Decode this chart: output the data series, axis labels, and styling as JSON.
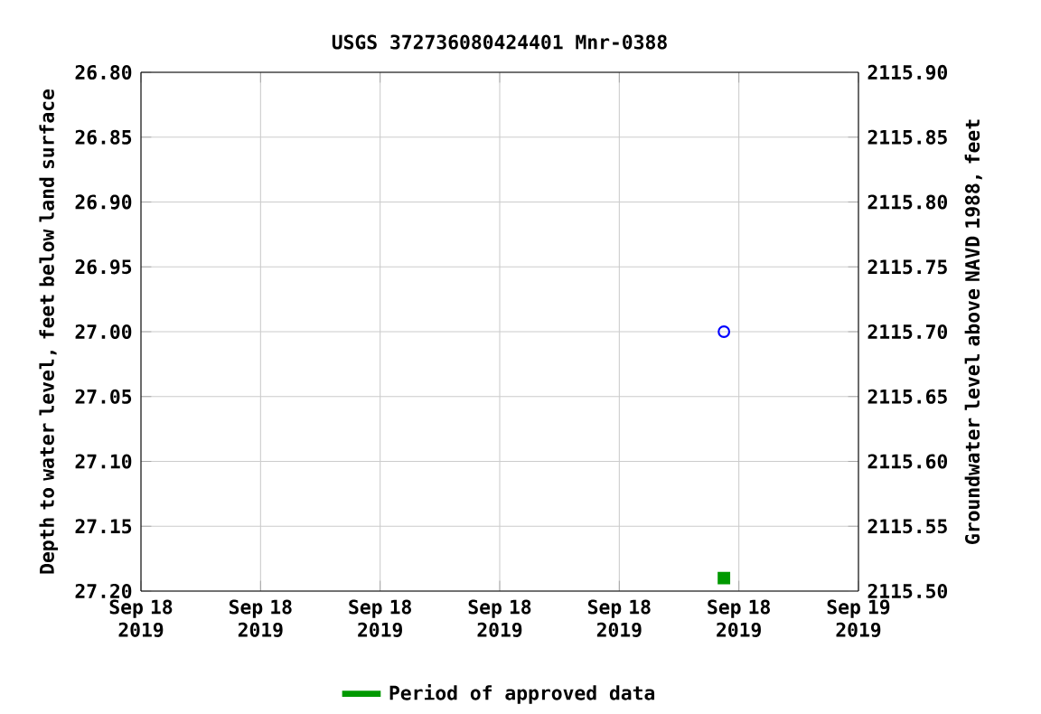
{
  "chart_data": {
    "type": "scatter",
    "title": "USGS 372736080424401 Mnr-0388",
    "ylabel": "Depth to water level, feet below land surface",
    "y2label": "Groundwater level above NAVD 1988, feet",
    "series": [
      {
        "color": "#0000ff",
        "marker": "circle",
        "x": [
          "2019-09-18T19:30"
        ],
        "values": [
          27.0
        ]
      },
      {
        "name": "Period of approved data",
        "color": "#009900",
        "marker": "square",
        "x": [
          "2019-09-18T19:30"
        ],
        "values": [
          27.19
        ]
      }
    ],
    "xlim": [
      "2019-09-18T00:00",
      "2019-09-19T00:00"
    ],
    "xticks": [
      {
        "value": "2019-09-18T00:00",
        "label": "Sep 18 2019"
      },
      {
        "value": "2019-09-18T04:00",
        "label": "Sep 18 2019"
      },
      {
        "value": "2019-09-18T08:00",
        "label": "Sep 18 2019"
      },
      {
        "value": "2019-09-18T12:00",
        "label": "Sep 18 2019"
      },
      {
        "value": "2019-09-18T16:00",
        "label": "Sep 18 2019"
      },
      {
        "value": "2019-09-18T20:00",
        "label": "Sep 18 2019"
      },
      {
        "value": "2019-09-19T00:00",
        "label": "Sep 19 2019"
      }
    ],
    "ylim": [
      27.2,
      26.8
    ],
    "yticks": [
      {
        "value": 26.8,
        "label": "26.80"
      },
      {
        "value": 26.85,
        "label": "26.85"
      },
      {
        "value": 26.9,
        "label": "26.90"
      },
      {
        "value": 26.95,
        "label": "26.95"
      },
      {
        "value": 27.0,
        "label": "27.00"
      },
      {
        "value": 27.05,
        "label": "27.05"
      },
      {
        "value": 27.1,
        "label": "27.10"
      },
      {
        "value": 27.15,
        "label": "27.15"
      },
      {
        "value": 27.2,
        "label": "27.20"
      }
    ],
    "y2lim": [
      2115.5,
      2115.9
    ],
    "y2ticks": [
      {
        "value": 2115.5,
        "label": "2115.50"
      },
      {
        "value": 2115.55,
        "label": "2115.55"
      },
      {
        "value": 2115.6,
        "label": "2115.60"
      },
      {
        "value": 2115.65,
        "label": "2115.65"
      },
      {
        "value": 2115.7,
        "label": "2115.70"
      },
      {
        "value": 2115.75,
        "label": "2115.75"
      },
      {
        "value": 2115.8,
        "label": "2115.80"
      },
      {
        "value": 2115.85,
        "label": "2115.85"
      },
      {
        "value": 2115.9,
        "label": "2115.90"
      }
    ],
    "grid": true,
    "legend": "bottom"
  }
}
